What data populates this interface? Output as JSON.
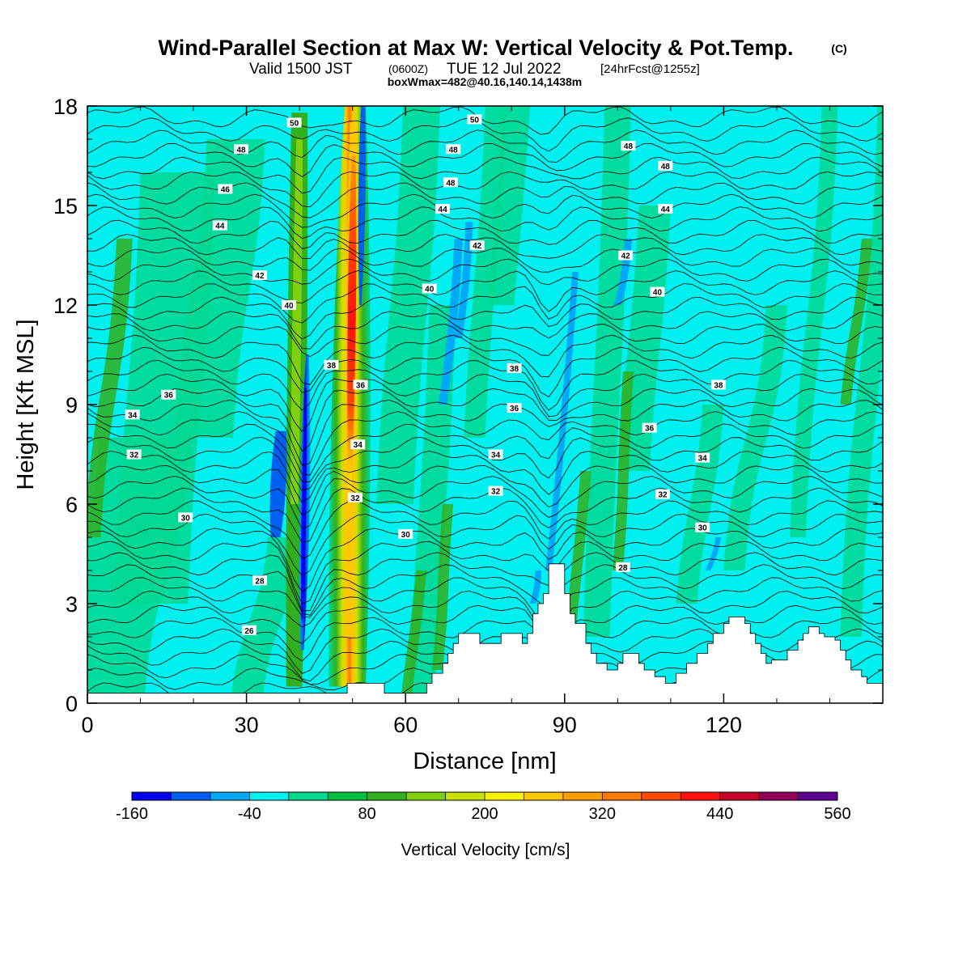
{
  "header": {
    "title": "Wind-Parallel Section at Max W: Vertical Velocity & Pot.Temp.",
    "copyright": "(C)",
    "subtitle_a": "Valid 1500 JST",
    "subtitle_b": "(0600Z)",
    "subtitle_c": "TUE 12 Jul 2022",
    "subtitle_d": "[24hrFcst@1255z]",
    "subtitle2": "boxWmax=482@40.16,140.14,1438m"
  },
  "colors": {
    "background_fill": "#00EFEF",
    "terrain": "#FFFFFF",
    "contour_line": "#000000",
    "scale": [
      "#0000F0",
      "#0060F0",
      "#00A8F8",
      "#00EFEF",
      "#00D890",
      "#00C040",
      "#30B020",
      "#80D010",
      "#C8E000",
      "#FFF000",
      "#FFC800",
      "#FFA000",
      "#FF7800",
      "#FF4800",
      "#FF1010",
      "#C80028",
      "#900058",
      "#600090"
    ]
  },
  "chart_data": {
    "type": "heatmap",
    "title": "Wind-Parallel Section at Max W: Vertical Velocity & Pot.Temp.",
    "xlabel": "Distance [nm]",
    "ylabel": "Height [Kft MSL]",
    "xlim": [
      0,
      150
    ],
    "ylim": [
      0,
      18
    ],
    "x_ticks": [
      "0",
      "30",
      "60",
      "90",
      "120"
    ],
    "y_ticks": [
      "0",
      "3",
      "6",
      "9",
      "12",
      "15",
      "18"
    ],
    "colorbar": {
      "label": "Vertical Velocity [cm/s]",
      "min": -160,
      "max": 560,
      "step": 40,
      "tick_labels": [
        "-160",
        "-40",
        "80",
        "200",
        "320",
        "440",
        "560"
      ]
    },
    "vertical_velocity_features": [
      {
        "kind": "updraft",
        "x": 49.5,
        "z_range": [
          0.5,
          17.5
        ],
        "peak_cm_s": 482
      },
      {
        "kind": "downdraft",
        "x": 41,
        "z_range": [
          1.5,
          10.5
        ],
        "peak_cm_s": -160
      },
      {
        "kind": "updraft",
        "x": 39,
        "z_range": [
          1,
          17
        ],
        "peak_cm_s": 100
      },
      {
        "kind": "downdraft",
        "x": 36,
        "z_range": [
          5,
          8
        ],
        "peak_cm_s": -100
      },
      {
        "kind": "downdraft",
        "x": 52,
        "z_range": [
          14,
          18
        ],
        "peak_cm_s": -120
      },
      {
        "kind": "downdraft",
        "x": 88,
        "z_range": [
          3,
          13
        ],
        "peak_cm_s": -100
      },
      {
        "kind": "downdraft",
        "x": 70,
        "z_range": [
          9,
          14
        ],
        "peak_cm_s": -70
      },
      {
        "kind": "updraft",
        "x": 91,
        "z_range": [
          2,
          7
        ],
        "peak_cm_s": 60
      }
    ],
    "terrain_profile": {
      "x": [
        0,
        48,
        49,
        53,
        56,
        60,
        64,
        65,
        67,
        68,
        69,
        70,
        72,
        74,
        78,
        80,
        82,
        83,
        84,
        85,
        86,
        87,
        89,
        90,
        91,
        92,
        94,
        95,
        96,
        98,
        100,
        101,
        104,
        105,
        107,
        109,
        111,
        113,
        115,
        117,
        118,
        120,
        121,
        122,
        124,
        125,
        126,
        127,
        128,
        129,
        131,
        132,
        134,
        135,
        136,
        137,
        138,
        139,
        141,
        142,
        143,
        144,
        146,
        147,
        148,
        150
      ],
      "z": [
        0.3,
        0.3,
        0.6,
        0.6,
        0.3,
        0.3,
        0.6,
        0.9,
        1.2,
        1.5,
        1.8,
        2.1,
        2.1,
        1.8,
        2.1,
        2.1,
        1.8,
        2.1,
        2.7,
        3.0,
        3.3,
        4.2,
        4.2,
        3.3,
        2.7,
        2.4,
        1.8,
        1.5,
        1.2,
        1.0,
        1.2,
        1.5,
        1.2,
        1.0,
        0.8,
        0.6,
        0.9,
        1.2,
        1.5,
        1.8,
        2.1,
        2.4,
        2.6,
        2.6,
        2.4,
        2.1,
        1.8,
        1.5,
        1.2,
        1.3,
        1.3,
        1.6,
        1.9,
        2.1,
        2.3,
        2.3,
        2.1,
        2.0,
        1.9,
        1.6,
        1.3,
        1.0,
        0.8,
        0.6,
        0.6,
        0.6
      ]
    },
    "theta_contours": {
      "levels_K_labels": [
        "26",
        "28",
        "30",
        "32",
        "34",
        "36",
        "38",
        "40",
        "42",
        "44",
        "46",
        "48",
        "50"
      ],
      "labels": [
        {
          "text": "50",
          "x": 39,
          "z": 17.5
        },
        {
          "text": "50",
          "x": 73,
          "z": 17.6
        },
        {
          "text": "48",
          "x": 29,
          "z": 16.7
        },
        {
          "text": "48",
          "x": 69,
          "z": 16.7
        },
        {
          "text": "48",
          "x": 102,
          "z": 16.8
        },
        {
          "text": "48",
          "x": 68.5,
          "z": 15.7
        },
        {
          "text": "48",
          "x": 109,
          "z": 16.2
        },
        {
          "text": "46",
          "x": 26,
          "z": 15.5
        },
        {
          "text": "44",
          "x": 25,
          "z": 14.4
        },
        {
          "text": "44",
          "x": 67,
          "z": 14.9
        },
        {
          "text": "44",
          "x": 109,
          "z": 14.9
        },
        {
          "text": "42",
          "x": 32.5,
          "z": 12.9
        },
        {
          "text": "42",
          "x": 73.5,
          "z": 13.8
        },
        {
          "text": "42",
          "x": 101.5,
          "z": 13.5
        },
        {
          "text": "40",
          "x": 38,
          "z": 12.0
        },
        {
          "text": "40",
          "x": 64.5,
          "z": 12.5
        },
        {
          "text": "40",
          "x": 107.5,
          "z": 12.4
        },
        {
          "text": "38",
          "x": 46,
          "z": 10.2
        },
        {
          "text": "38",
          "x": 80.5,
          "z": 10.1
        },
        {
          "text": "38",
          "x": 119,
          "z": 9.6
        },
        {
          "text": "36",
          "x": 15.3,
          "z": 9.3
        },
        {
          "text": "36",
          "x": 51.5,
          "z": 9.6
        },
        {
          "text": "36",
          "x": 80.5,
          "z": 8.9
        },
        {
          "text": "36",
          "x": 106,
          "z": 8.3
        },
        {
          "text": "34",
          "x": 8.5,
          "z": 8.7
        },
        {
          "text": "34",
          "x": 51,
          "z": 7.8
        },
        {
          "text": "34",
          "x": 77,
          "z": 7.5
        },
        {
          "text": "34",
          "x": 116,
          "z": 7.4
        },
        {
          "text": "32",
          "x": 8.8,
          "z": 7.5
        },
        {
          "text": "32",
          "x": 50.5,
          "z": 6.2
        },
        {
          "text": "32",
          "x": 77,
          "z": 6.4
        },
        {
          "text": "32",
          "x": 108.5,
          "z": 6.3
        },
        {
          "text": "30",
          "x": 18.5,
          "z": 5.6
        },
        {
          "text": "30",
          "x": 60,
          "z": 5.1
        },
        {
          "text": "30",
          "x": 116,
          "z": 5.3
        },
        {
          "text": "28",
          "x": 32.5,
          "z": 3.7
        },
        {
          "text": "28",
          "x": 101,
          "z": 4.1
        },
        {
          "text": "26",
          "x": 30.5,
          "z": 2.2
        }
      ]
    }
  }
}
